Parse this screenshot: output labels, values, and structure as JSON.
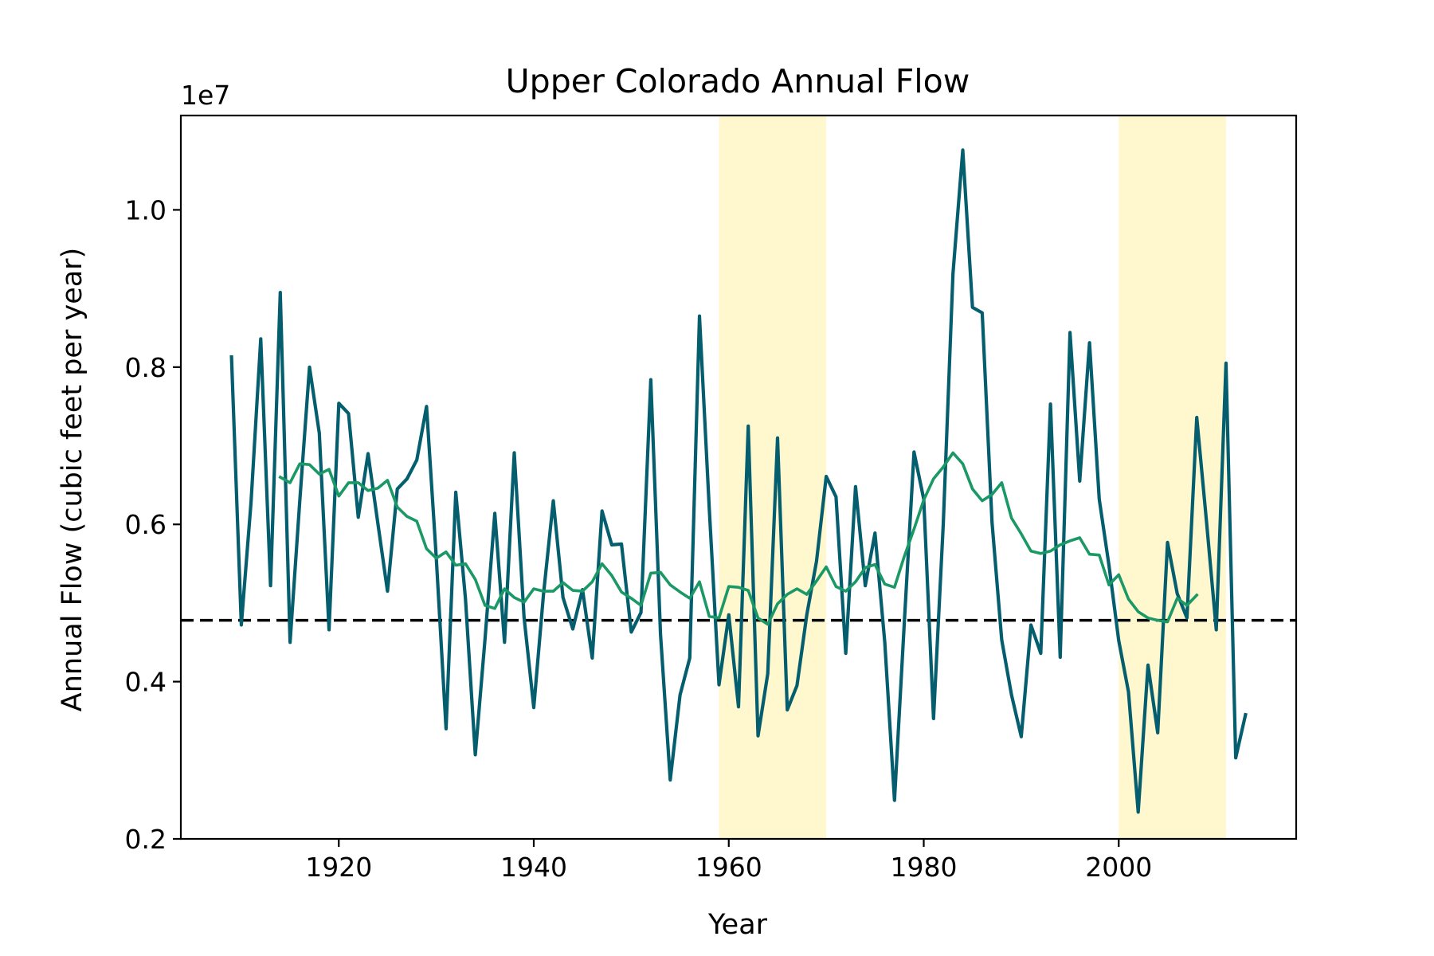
{
  "chart_data": {
    "type": "line",
    "title": "Upper Colorado Annual Flow",
    "xlabel": "Year",
    "ylabel": "Annual Flow (cubic feet per year)",
    "y_offset_label": "1e7",
    "xlim": [
      1903.8,
      2018.2
    ],
    "ylim": [
      0.2,
      1.12
    ],
    "y_scale": "1e7",
    "xticks": [
      1920,
      1940,
      1960,
      1980,
      2000
    ],
    "xtick_labels": [
      "1920",
      "1940",
      "1960",
      "1980",
      "2000"
    ],
    "yticks": [
      0.2,
      0.4,
      0.6,
      0.8,
      1.0
    ],
    "ytick_labels": [
      "0.2",
      "0.4",
      "0.6",
      "0.8",
      "1.0"
    ],
    "grid": false,
    "reference_line": {
      "y": 0.478,
      "style": "dashed",
      "color": "#000000"
    },
    "shaded_regions": [
      {
        "x0": 1959,
        "x1": 1970,
        "color": "#fff8cf"
      },
      {
        "x0": 2000,
        "x1": 2011,
        "color": "#fff8cf"
      }
    ],
    "series": [
      {
        "color": "#055e6e",
        "x": [
          1909,
          1910,
          1911,
          1912,
          1913,
          1914,
          1915,
          1916,
          1917,
          1918,
          1919,
          1920,
          1921,
          1922,
          1923,
          1924,
          1925,
          1926,
          1927,
          1928,
          1929,
          1930,
          1931,
          1932,
          1933,
          1934,
          1935,
          1936,
          1937,
          1938,
          1939,
          1940,
          1941,
          1942,
          1943,
          1944,
          1945,
          1946,
          1947,
          1948,
          1949,
          1950,
          1951,
          1952,
          1953,
          1954,
          1955,
          1956,
          1957,
          1958,
          1959,
          1960,
          1961,
          1962,
          1963,
          1964,
          1965,
          1966,
          1967,
          1968,
          1969,
          1970,
          1971,
          1972,
          1973,
          1974,
          1975,
          1976,
          1977,
          1978,
          1979,
          1980,
          1981,
          1982,
          1983,
          1984,
          1985,
          1986,
          1987,
          1988,
          1989,
          1990,
          1991,
          1992,
          1993,
          1994,
          1995,
          1996,
          1997,
          1998,
          1999,
          2000,
          2001,
          2002,
          2003,
          2004,
          2005,
          2006,
          2007,
          2008,
          2009,
          2010,
          2011,
          2012,
          2013
        ],
        "values": [
          0.813,
          0.472,
          0.628,
          0.836,
          0.522,
          0.895,
          0.45,
          0.63,
          0.8,
          0.716,
          0.466,
          0.754,
          0.741,
          0.609,
          0.69,
          0.602,
          0.515,
          0.645,
          0.658,
          0.682,
          0.75,
          0.558,
          0.34,
          0.641,
          0.505,
          0.307,
          0.454,
          0.614,
          0.45,
          0.691,
          0.482,
          0.367,
          0.511,
          0.63,
          0.507,
          0.467,
          0.517,
          0.43,
          0.617,
          0.574,
          0.575,
          0.463,
          0.488,
          0.784,
          0.46,
          0.275,
          0.383,
          0.43,
          0.865,
          0.62,
          0.396,
          0.485,
          0.368,
          0.725,
          0.331,
          0.41,
          0.71,
          0.364,
          0.395,
          0.485,
          0.553,
          0.661,
          0.635,
          0.436,
          0.648,
          0.522,
          0.589,
          0.45,
          0.249,
          0.473,
          0.692,
          0.632,
          0.353,
          0.6,
          0.919,
          1.076,
          0.876,
          0.869,
          0.603,
          0.453,
          0.383,
          0.33,
          0.472,
          0.436,
          0.753,
          0.431,
          0.844,
          0.655,
          0.831,
          0.632,
          0.548,
          0.452,
          0.387,
          0.234,
          0.421,
          0.335,
          0.577,
          0.512,
          0.481,
          0.736,
          0.604,
          0.466,
          0.805,
          0.303,
          0.358
        ]
      },
      {
        "color": "#1a9865",
        "x": [
          1914,
          1915,
          1916,
          1917,
          1918,
          1919,
          1920,
          1921,
          1922,
          1923,
          1924,
          1925,
          1926,
          1927,
          1928,
          1929,
          1930,
          1931,
          1932,
          1933,
          1934,
          1935,
          1936,
          1937,
          1938,
          1939,
          1940,
          1941,
          1942,
          1943,
          1944,
          1945,
          1946,
          1947,
          1948,
          1949,
          1950,
          1951,
          1952,
          1953,
          1954,
          1955,
          1956,
          1957,
          1958,
          1959,
          1960,
          1961,
          1962,
          1963,
          1964,
          1965,
          1966,
          1967,
          1968,
          1969,
          1970,
          1971,
          1972,
          1973,
          1974,
          1975,
          1976,
          1977,
          1978,
          1979,
          1980,
          1981,
          1982,
          1983,
          1984,
          1985,
          1986,
          1987,
          1988,
          1989,
          1990,
          1991,
          1992,
          1993,
          1994,
          1995,
          1996,
          1997,
          1998,
          1999,
          2000,
          2001,
          2002,
          2003,
          2004,
          2005,
          2006,
          2007,
          2008
        ],
        "values": [
          0.66,
          0.653,
          0.677,
          0.676,
          0.664,
          0.67,
          0.636,
          0.653,
          0.653,
          0.643,
          0.646,
          0.656,
          0.622,
          0.61,
          0.604,
          0.569,
          0.557,
          0.565,
          0.548,
          0.55,
          0.53,
          0.497,
          0.493,
          0.518,
          0.507,
          0.501,
          0.518,
          0.515,
          0.515,
          0.526,
          0.516,
          0.515,
          0.527,
          0.55,
          0.535,
          0.514,
          0.506,
          0.497,
          0.538,
          0.539,
          0.523,
          0.514,
          0.506,
          0.527,
          0.483,
          0.481,
          0.521,
          0.52,
          0.516,
          0.481,
          0.473,
          0.499,
          0.511,
          0.518,
          0.511,
          0.528,
          0.546,
          0.521,
          0.515,
          0.527,
          0.545,
          0.549,
          0.524,
          0.52,
          0.559,
          0.594,
          0.631,
          0.658,
          0.673,
          0.691,
          0.677,
          0.645,
          0.63,
          0.638,
          0.653,
          0.608,
          0.588,
          0.566,
          0.563,
          0.566,
          0.574,
          0.579,
          0.583,
          0.562,
          0.561,
          0.523,
          0.536,
          0.505,
          0.489,
          0.481,
          0.478,
          0.476,
          0.506,
          0.497,
          0.51
        ]
      }
    ]
  }
}
